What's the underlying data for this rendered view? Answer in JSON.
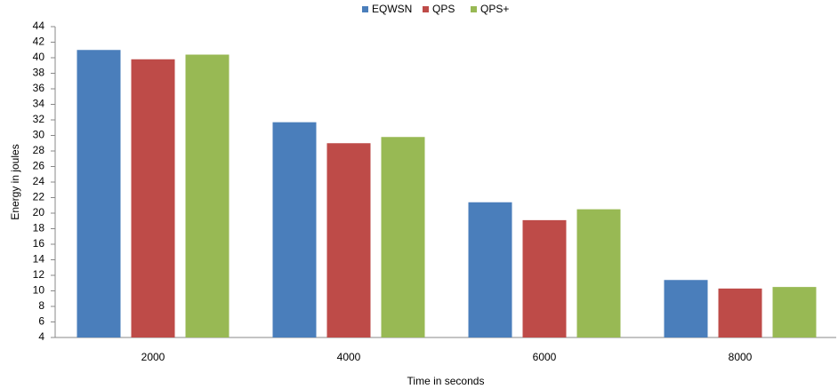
{
  "chart_data": {
    "type": "bar",
    "x_label": "Time in seconds",
    "y_label": "Energy in joules",
    "categories": [
      "2000",
      "4000",
      "6000",
      "8000"
    ],
    "series": [
      {
        "name": "EQWSN",
        "color": "#4a7ebb",
        "values": [
          41,
          31.7,
          21.4,
          11.4
        ]
      },
      {
        "name": "QPS",
        "color": "#be4b48",
        "values": [
          39.8,
          29,
          19.1,
          10.3
        ]
      },
      {
        "name": "QPS+",
        "color": "#98b954",
        "values": [
          40.4,
          29.8,
          20.5,
          10.5
        ]
      }
    ],
    "ylim": [
      4,
      44
    ],
    "yticks": [
      4,
      6,
      8,
      10,
      12,
      14,
      16,
      18,
      20,
      22,
      24,
      26,
      28,
      30,
      32,
      34,
      36,
      38,
      40,
      42,
      44
    ],
    "grid": false,
    "legend": "top"
  }
}
